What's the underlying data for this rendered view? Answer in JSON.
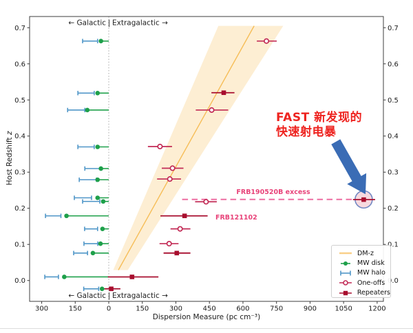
{
  "chart_data": {
    "type": "scatter",
    "title": "",
    "xlabel": "Dispersion Measure (pc cm⁻³)",
    "ylabel": "Host Redshift",
    "ylabel_italic": "z",
    "xlim": [
      -354,
      1228
    ],
    "ylim": [
      -0.0577,
      0.731
    ],
    "grid": false,
    "x_ticks": {
      "values": [
        -300,
        -150,
        0,
        150,
        300,
        450,
        600,
        750,
        900,
        1050,
        1200
      ],
      "labels": [
        "300",
        "150",
        "0",
        "150",
        "300",
        "450",
        "600",
        "750",
        "900",
        "1050",
        "1200"
      ]
    },
    "y_ticks": {
      "values": [
        0.0,
        0.1,
        0.2,
        0.3,
        0.4,
        0.5,
        0.6,
        0.7
      ],
      "labels": [
        "0.0",
        "0.1",
        "0.2",
        "0.3",
        "0.4",
        "0.5",
        "0.6",
        "0.7"
      ]
    },
    "zero_divider_dm": 0,
    "band": {
      "name": "DM-z relation uncertainty wedge",
      "z_bottom": 0.029,
      "z_top": 0.705,
      "dm_left_edge": [
        20,
        490
      ],
      "dm_right_edge": [
        85,
        780
      ],
      "dm_center_line": [
        43,
        650
      ]
    },
    "series": {
      "mw_disk": {
        "label": "MW disk",
        "points": [
          {
            "z": 0.663,
            "dm": -35
          },
          {
            "z": 0.519,
            "dm": -50
          },
          {
            "z": 0.472,
            "dm": -96
          },
          {
            "z": 0.37,
            "dm": -50
          },
          {
            "z": 0.31,
            "dm": -35
          },
          {
            "z": 0.279,
            "dm": -50
          },
          {
            "z": 0.229,
            "dm": -50
          },
          {
            "z": 0.219,
            "dm": -25
          },
          {
            "z": 0.179,
            "dm": -189
          },
          {
            "z": 0.143,
            "dm": -28
          },
          {
            "z": 0.102,
            "dm": -37
          },
          {
            "z": 0.076,
            "dm": -71
          },
          {
            "z": 0.01,
            "dm": -199
          },
          {
            "z": -0.023,
            "dm": -30
          }
        ]
      },
      "mw_halo": {
        "label": "MW halo",
        "bars": [
          {
            "z": 0.663,
            "lo": -117,
            "hi": -50
          },
          {
            "z": 0.519,
            "lo": -138,
            "hi": -65
          },
          {
            "z": 0.472,
            "lo": -184,
            "hi": -107
          },
          {
            "z": 0.37,
            "lo": -138,
            "hi": -65
          },
          {
            "z": 0.31,
            "lo": -107,
            "hi": -35
          },
          {
            "z": 0.279,
            "lo": -132,
            "hi": -55
          },
          {
            "z": 0.229,
            "lo": -154,
            "hi": -77
          },
          {
            "z": 0.219,
            "lo": -117,
            "hi": -40
          },
          {
            "z": 0.179,
            "lo": -283,
            "hi": -214
          },
          {
            "z": 0.143,
            "lo": -108,
            "hi": -50
          },
          {
            "z": 0.102,
            "lo": -111,
            "hi": -49
          },
          {
            "z": 0.076,
            "lo": -157,
            "hi": -95
          },
          {
            "z": 0.01,
            "lo": -286,
            "hi": -225
          },
          {
            "z": -0.023,
            "lo": -112,
            "hi": -45
          }
        ]
      },
      "one_offs": {
        "label": "One-offs",
        "points": [
          {
            "z": 0.663,
            "dm": 705,
            "lo": 662,
            "hi": 751
          },
          {
            "z": 0.472,
            "dm": 460,
            "lo": 389,
            "hi": 534
          },
          {
            "z": 0.371,
            "dm": 229,
            "lo": 175,
            "hi": 283
          },
          {
            "z": 0.311,
            "dm": 285,
            "lo": 237,
            "hi": 334
          },
          {
            "z": 0.281,
            "dm": 273,
            "lo": 216,
            "hi": 323
          },
          {
            "z": 0.218,
            "dm": 435,
            "lo": 386,
            "hi": 483
          },
          {
            "z": 0.143,
            "dm": 319,
            "lo": 276,
            "hi": 365
          },
          {
            "z": 0.102,
            "dm": 270,
            "lo": 227,
            "hi": 312
          }
        ]
      },
      "repeaters": {
        "label": "Repeaters",
        "points": [
          {
            "z": 0.52,
            "dm": 514,
            "lo": 459,
            "hi": 562
          },
          {
            "z": 0.224,
            "dm": 1140,
            "lo": 1092,
            "hi": 1191,
            "highlight": true
          },
          {
            "z": 0.179,
            "dm": 339,
            "lo": 231,
            "hi": 442
          },
          {
            "z": 0.076,
            "dm": 304,
            "lo": 245,
            "hi": 365
          },
          {
            "z": 0.01,
            "dm": 104,
            "lo": -4,
            "hi": 222
          },
          {
            "z": -0.023,
            "dm": 11,
            "lo": -19,
            "hi": 52
          }
        ]
      },
      "dm_z": {
        "label": "DM-z"
      }
    },
    "highlight": {
      "target": "FRB190520B",
      "z": 0.2245,
      "dm": 1140,
      "dash_from_dm": 328,
      "halo_radius_px": 12.5
    },
    "annotations": {
      "galactic_left": "←  Galactic",
      "divider": "|",
      "extragalactic_right": "Extragalactic  →",
      "frb190520b_label": "FRB190520B excess",
      "frb121102_label": "FRB121102",
      "fast_line1": "FAST 新发现的",
      "fast_line2": "快速射电暴",
      "arrow": {
        "from_dm": 1015,
        "from_z": 0.384,
        "to_dm": 1148,
        "to_z": 0.239
      }
    },
    "legend": {
      "position": "lower right",
      "items": [
        {
          "key": "dm_z",
          "label": "DM-z"
        },
        {
          "key": "mw_disk",
          "label": "MW disk"
        },
        {
          "key": "mw_halo",
          "label": "MW halo"
        },
        {
          "key": "one_offs",
          "label": "One-offs"
        },
        {
          "key": "repeaters",
          "label": "Repeaters"
        }
      ]
    }
  },
  "colors": {
    "mw_disk": "#1ea04a",
    "mw_halo": "#4f96c8",
    "one_offs": "#c22a55",
    "repeaters": "#a80d2e",
    "band_fill": "#fdeed3",
    "band_line": "#f6bd57",
    "dashed_line": "#ef7dab",
    "frb_labels": "#e8447a",
    "highlight_fill": "#f7d9df",
    "highlight_stroke": "#7288c3",
    "arrow": "#3a6cb5",
    "fast_text": "#ee2420",
    "axis": "#3c3c3c"
  }
}
